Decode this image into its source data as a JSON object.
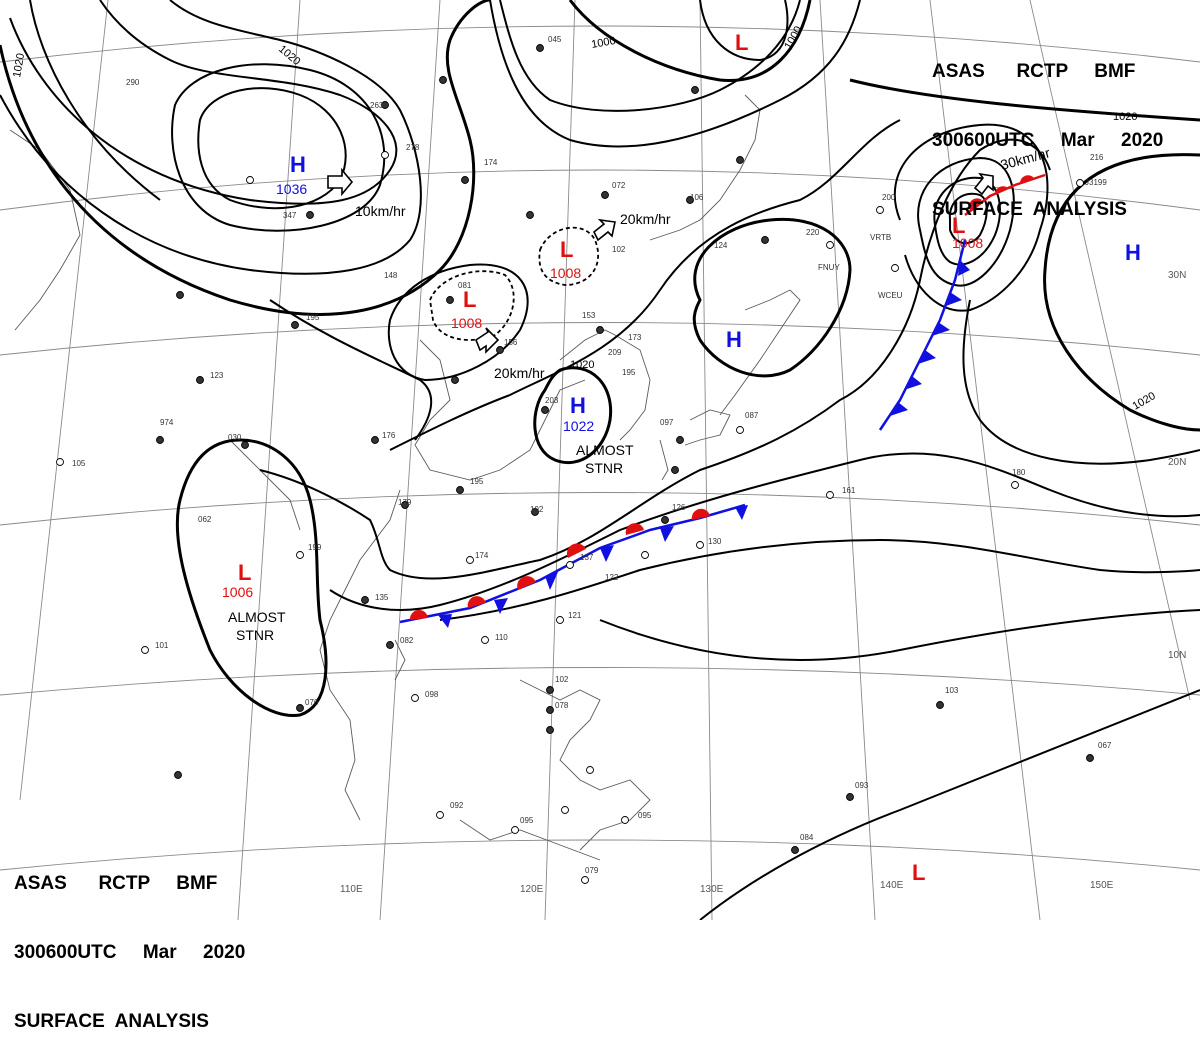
{
  "header": {
    "line1": "ASAS      RCTP     BMF",
    "line2": "300600UTC     Mar     2020",
    "line3": "SURFACE  ANALYSIS"
  },
  "footer": {
    "line1": "ASAS      RCTP     BMF",
    "line2": "300600UTC     Mar     2020",
    "line3": "SURFACE  ANALYSIS"
  },
  "longitude_labels": [
    "110E",
    "120E",
    "130E",
    "140E",
    "150E"
  ],
  "latitude_labels": [
    "30N",
    "20N",
    "10N"
  ],
  "isobar_labels": [
    "1020",
    "1020",
    "1000",
    "1000",
    "1020",
    "1020",
    "1020"
  ],
  "pressure_systems": [
    {
      "type": "H",
      "value": "1036"
    },
    {
      "type": "L",
      "value": "1008"
    },
    {
      "type": "L",
      "value": "1008"
    },
    {
      "type": "H",
      "value": "1022"
    },
    {
      "type": "L",
      "value": "1006"
    },
    {
      "type": "L",
      "value": "1008"
    },
    {
      "type": "H",
      "value": ""
    },
    {
      "type": "H",
      "value": ""
    },
    {
      "type": "L",
      "value": ""
    },
    {
      "type": "L",
      "value": ""
    }
  ],
  "movement_labels": [
    "10km/hr",
    "20km/hr",
    "20km/hr",
    "30km/hr"
  ],
  "status_notes": [
    "ALMOST",
    "STNR",
    "ALMOST",
    "STNR"
  ],
  "ship_ids": [
    "FNUY",
    "VRTB",
    "WCEU",
    "J3199"
  ],
  "station_values": [
    "045",
    "290",
    "263",
    "278",
    "174",
    "347",
    "148",
    "195",
    "081",
    "156",
    "072",
    "106",
    "102",
    "124",
    "220",
    "200",
    "216",
    "153",
    "173",
    "209",
    "195",
    "123",
    "974",
    "030",
    "176",
    "203",
    "097",
    "087",
    "105",
    "062",
    "179",
    "195",
    "192",
    "174",
    "199",
    "135",
    "082",
    "110",
    "121",
    "122",
    "137",
    "126",
    "130",
    "161",
    "180",
    "098",
    "102",
    "078",
    "076",
    "092",
    "095",
    "079",
    "084",
    "095",
    "101",
    "093",
    "103",
    "067"
  ],
  "colors": {
    "high": "#1010e0",
    "low": "#e01010",
    "isobar": "#000000",
    "grid": "#808080",
    "coast": "#555555",
    "cold_front": "#1010e0",
    "warm_front": "#e01010"
  },
  "icons": {
    "wind_arrow": "hollow-arrow-icon",
    "station": "station-circle-icon"
  }
}
